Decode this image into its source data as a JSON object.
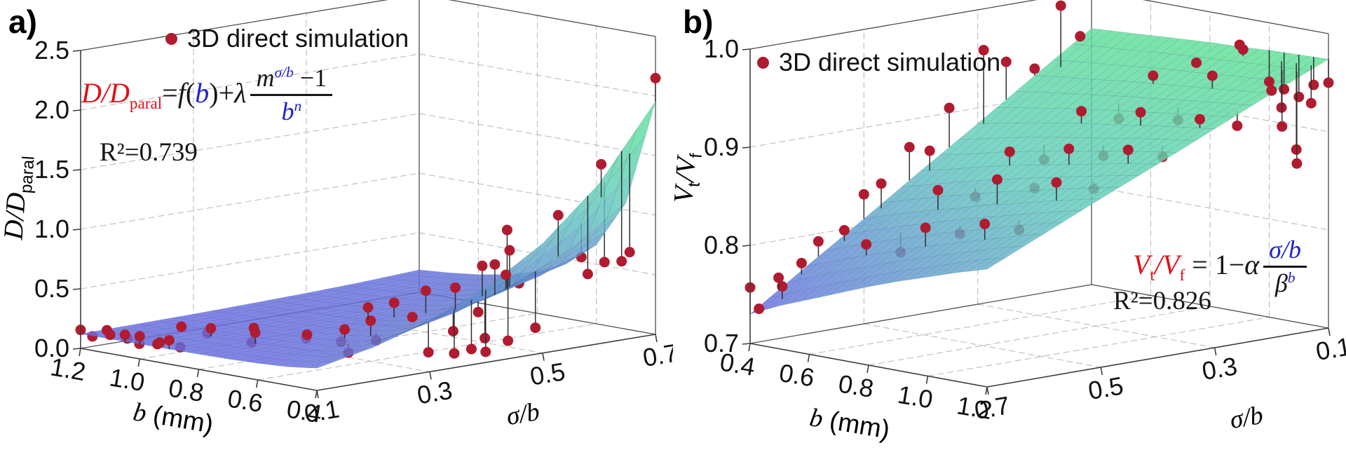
{
  "page": {
    "background": "#ffffff"
  },
  "chart_data": {
    "type": "3d-surface-scatter",
    "panels": [
      {
        "id": "a",
        "letter": "a)",
        "legend": {
          "label": "3D direct simulation",
          "marker_color": "#b01b30"
        },
        "point_color": "#b01b30",
        "colors": {
          "equation_red": "#e01018",
          "equation_blue": "#2222cc",
          "surface_low": "#6a6de4",
          "surface_mid": "#64ccbe",
          "surface_high": "#62e297"
        },
        "equation": {
          "lhs": "D/D",
          "lhs_sub": "paral",
          "eq": "=",
          "f": "f",
          "open": "(",
          "b": "b",
          "close": ")+",
          "lam": "λ",
          "num_m": "m",
          "num_sup": "σ/b",
          "num_tail": " −1",
          "den": "b",
          "den_sup": "n",
          "r2": "R²=0.739"
        },
        "axes": {
          "b": {
            "title_var": "b",
            "title_unit": " (mm)",
            "ticks": [
              1.2,
              1.0,
              0.8,
              0.6,
              0.4
            ],
            "labels": [
              "1.2",
              "1.0",
              "0.8",
              "0.6",
              "0.4"
            ],
            "range": [
              1.2,
              0.4
            ]
          },
          "sigma": {
            "title": "σ/b",
            "ticks": [
              0.1,
              0.3,
              0.5,
              0.7
            ],
            "labels": [
              "0.1",
              "0.3",
              "0.5",
              "0.7"
            ],
            "range": [
              0.1,
              0.7
            ]
          },
          "z": {
            "title_main": "D/D",
            "title_sub": "paral",
            "ticks": [
              0,
              0.5,
              1.0,
              1.5,
              2.0,
              2.5
            ],
            "labels": [
              "0.0",
              "0.5",
              "1.0",
              "1.5",
              "2.0",
              "2.5"
            ],
            "range": [
              0,
              2.5
            ]
          }
        },
        "corner_values": {
          "left": {
            "b": 1.2,
            "s": 0.1
          },
          "front": {
            "b": 0.4,
            "s": 0.1
          },
          "right": {
            "b": 0.4,
            "s": 0.7
          }
        },
        "surface": {
          "b_values": [
            1.2,
            1.1,
            1.0,
            0.9,
            0.8,
            0.7,
            0.6,
            0.5,
            0.4
          ],
          "sigma_values": [
            0.1,
            0.2,
            0.3,
            0.4,
            0.5,
            0.6,
            0.7
          ],
          "z_grid": [
            [
              0.122,
              0.126,
              0.131,
              0.139,
              0.15,
              0.165,
              0.188
            ],
            [
              0.123,
              0.128,
              0.135,
              0.144,
              0.158,
              0.179,
              0.208
            ],
            [
              0.124,
              0.13,
              0.139,
              0.152,
              0.171,
              0.198,
              0.237
            ],
            [
              0.126,
              0.134,
              0.147,
              0.164,
              0.19,
              0.227,
              0.281
            ],
            [
              0.128,
              0.14,
              0.158,
              0.183,
              0.22,
              0.273,
              0.349
            ],
            [
              0.132,
              0.151,
              0.177,
              0.214,
              0.269,
              0.348,
              0.462
            ],
            [
              0.14,
              0.168,
              0.21,
              0.27,
              0.357,
              0.482,
              0.663
            ],
            [
              0.154,
              0.204,
              0.275,
              0.379,
              0.529,
              0.746,
              1.059
            ],
            [
              0.187,
              0.284,
              0.424,
              0.626,
              0.919,
              1.342,
              1.954
            ]
          ]
        },
        "points": [
          [
            1.2,
            0.1,
            0.155,
            0
          ],
          [
            1.16,
            0.1,
            0.118,
            0
          ],
          [
            1.13,
            0.11,
            0.175,
            0
          ],
          [
            1.1,
            0.1,
            0.158,
            0
          ],
          [
            1.08,
            0.12,
            0.12,
            0
          ],
          [
            1.05,
            0.1,
            0.18,
            0
          ],
          [
            1.02,
            0.11,
            0.11,
            0
          ],
          [
            1.0,
            0.1,
            0.19,
            0
          ],
          [
            0.97,
            0.12,
            0.135,
            0
          ],
          [
            0.94,
            0.1,
            0.15,
            0
          ],
          [
            0.92,
            0.13,
            0.11,
            0
          ],
          [
            0.9,
            0.1,
            0.2,
            0
          ],
          [
            1.05,
            0.2,
            0.17,
            0
          ],
          [
            1.0,
            0.22,
            0.12,
            0
          ],
          [
            0.95,
            0.2,
            0.2,
            0
          ],
          [
            0.9,
            0.25,
            0.185,
            0
          ],
          [
            0.85,
            0.22,
            0.11,
            0
          ],
          [
            0.8,
            0.2,
            0.23,
            0
          ],
          [
            0.78,
            0.28,
            0.13,
            0
          ],
          [
            0.72,
            0.25,
            0.21,
            0
          ],
          [
            0.7,
            0.3,
            0.12,
            0
          ],
          [
            0.65,
            0.28,
            0.26,
            0
          ],
          [
            0.62,
            0.32,
            0.15,
            0
          ],
          [
            0.6,
            0.3,
            0.34,
            0
          ],
          [
            0.58,
            0.25,
            0.12,
            0
          ],
          [
            0.5,
            0.35,
            0.08,
            1
          ],
          [
            0.47,
            0.38,
            0.06,
            1
          ],
          [
            0.45,
            0.4,
            0.09,
            1
          ],
          [
            0.44,
            0.42,
            0.055,
            1
          ],
          [
            0.8,
            0.4,
            0.285,
            0
          ],
          [
            0.75,
            0.42,
            0.33,
            0
          ],
          [
            0.7,
            0.45,
            0.43,
            0
          ],
          [
            0.65,
            0.4,
            0.27,
            0
          ],
          [
            0.6,
            0.45,
            0.5,
            0
          ],
          [
            0.58,
            0.48,
            0.28,
            0
          ],
          [
            0.55,
            0.42,
            0.18,
            0
          ],
          [
            0.52,
            0.5,
            0.98,
            0
          ],
          [
            0.55,
            0.52,
            0.78,
            0
          ],
          [
            0.5,
            0.45,
            0.12,
            0
          ],
          [
            0.48,
            0.5,
            0.55,
            0
          ],
          [
            0.6,
            0.52,
            0.64,
            0
          ],
          [
            0.62,
            0.55,
            0.52,
            0
          ],
          [
            0.7,
            0.55,
            0.56,
            0
          ],
          [
            0.5,
            0.58,
            1.05,
            0
          ],
          [
            0.46,
            0.6,
            0.7,
            0
          ],
          [
            0.42,
            0.62,
            0.66,
            0
          ],
          [
            0.4,
            0.7,
            2.15,
            0
          ],
          [
            0.45,
            0.63,
            1.46,
            0
          ],
          [
            0.4,
            0.64,
            0.66,
            1
          ],
          [
            0.43,
            0.67,
            0.7,
            1
          ],
          [
            0.46,
            0.47,
            0.1,
            1
          ],
          [
            0.4,
            0.58,
            0.6,
            1
          ],
          [
            0.52,
            0.55,
            0.12,
            1
          ]
        ]
      },
      {
        "id": "b",
        "letter": "b)",
        "legend": {
          "label": "3D direct simulation",
          "marker_color": "#b01b30"
        },
        "point_color": "#b01b30",
        "colors": {
          "equation_red": "#e01018",
          "equation_blue": "#2222cc",
          "surface_low": "#6a6de4",
          "surface_mid": "#64ccbe",
          "surface_high": "#62e297"
        },
        "equation": {
          "v1": "V",
          "v1_sub": "t",
          "v2": "/V",
          "v2_sub": "f",
          "mid": " = 1−",
          "alpha": "α",
          "num": "σ/b",
          "den": "β",
          "den_sup": "b",
          "r2": "R²=0.826"
        },
        "axes": {
          "b": {
            "title_var": "b",
            "title_unit": " (mm)",
            "ticks": [
              0.4,
              0.6,
              0.8,
              1.0,
              1.2
            ],
            "labels": [
              "0.4",
              "0.6",
              "0.8",
              "1.0",
              "1.2"
            ],
            "range": [
              0.4,
              1.2
            ]
          },
          "sigma": {
            "title": "σ/b",
            "ticks": [
              0.7,
              0.5,
              0.3,
              0.1
            ],
            "labels": [
              "0.7",
              "0.5",
              "0.3",
              "0.1"
            ],
            "range": [
              0.7,
              0.1
            ]
          },
          "z": {
            "title_main": "V",
            "title_sub_t": "t",
            "title_main2": "/V",
            "title_sub_f": "f",
            "ticks": [
              0.7,
              0.8,
              0.9,
              1.0
            ],
            "labels": [
              "0.7",
              "0.8",
              "0.9",
              "1.0"
            ],
            "range": [
              0.7,
              1.0
            ]
          }
        },
        "corner_values": {
          "left": {
            "b": 0.4,
            "s": 0.7
          },
          "front": {
            "b": 1.2,
            "s": 0.7
          },
          "right": {
            "b": 1.2,
            "s": 0.1
          }
        },
        "surface": {
          "b_values": [
            0.4,
            0.5,
            0.6,
            0.7,
            0.8,
            0.9,
            1.0,
            1.1,
            1.2
          ],
          "sigma_values": [
            0.1,
            0.2,
            0.3,
            0.4,
            0.5,
            0.6,
            0.7
          ],
          "z_grid": [
            [
              0.961,
              0.923,
              0.884,
              0.846,
              0.807,
              0.769,
              0.73
            ],
            [
              0.963,
              0.927,
              0.89,
              0.853,
              0.817,
              0.78,
              0.744
            ],
            [
              0.965,
              0.93,
              0.896,
              0.861,
              0.826,
              0.791,
              0.756
            ],
            [
              0.967,
              0.934,
              0.901,
              0.868,
              0.834,
              0.801,
              0.768
            ],
            [
              0.969,
              0.937,
              0.906,
              0.874,
              0.843,
              0.811,
              0.78
            ],
            [
              0.97,
              0.94,
              0.91,
              0.88,
              0.85,
              0.82,
              0.791
            ],
            [
              0.972,
              0.943,
              0.915,
              0.886,
              0.858,
              0.829,
              0.801
            ],
            [
              0.973,
              0.946,
              0.919,
              0.892,
              0.865,
              0.838,
              0.811
            ],
            [
              0.974,
              0.949,
              0.923,
              0.897,
              0.872,
              0.846,
              0.82
            ]
          ]
        },
        "points": [
          [
            0.4,
            0.7,
            0.757,
            0
          ],
          [
            0.43,
            0.7,
            0.737,
            0
          ],
          [
            0.47,
            0.68,
            0.76,
            0
          ],
          [
            0.4,
            0.65,
            0.762,
            0
          ],
          [
            0.42,
            0.62,
            0.775,
            0
          ],
          [
            0.4,
            0.58,
            0.792,
            0
          ],
          [
            0.43,
            0.55,
            0.802,
            0
          ],
          [
            0.4,
            0.5,
            0.832,
            0
          ],
          [
            0.42,
            0.48,
            0.842,
            0
          ],
          [
            0.4,
            0.42,
            0.872,
            0
          ],
          [
            0.43,
            0.4,
            0.868,
            0
          ],
          [
            0.4,
            0.35,
            0.905,
            0
          ],
          [
            0.42,
            0.3,
            0.96,
            0
          ],
          [
            0.4,
            0.25,
            0.942,
            0
          ],
          [
            0.4,
            0.2,
            0.93,
            0
          ],
          [
            0.45,
            0.18,
            0.995,
            0
          ],
          [
            0.4,
            0.12,
            0.955,
            0
          ],
          [
            0.6,
            0.6,
            0.802,
            0
          ],
          [
            0.62,
            0.55,
            0.79,
            0
          ],
          [
            0.65,
            0.5,
            0.85,
            0
          ],
          [
            0.68,
            0.45,
            0.84,
            0
          ],
          [
            0.7,
            0.4,
            0.882,
            0
          ],
          [
            0.72,
            0.35,
            0.87,
            0
          ],
          [
            0.75,
            0.3,
            0.916,
            0
          ],
          [
            0.78,
            0.25,
            0.905,
            0
          ],
          [
            0.8,
            0.2,
            0.945,
            0
          ],
          [
            0.8,
            0.6,
            0.83,
            0
          ],
          [
            0.82,
            0.55,
            0.82,
            0
          ],
          [
            0.85,
            0.5,
            0.872,
            0
          ],
          [
            0.88,
            0.45,
            0.86,
            0
          ],
          [
            0.9,
            0.4,
            0.896,
            0
          ],
          [
            0.92,
            0.35,
            0.885,
            0
          ],
          [
            0.95,
            0.3,
            0.926,
            0
          ],
          [
            0.98,
            0.25,
            0.915,
            0
          ],
          [
            1.0,
            0.2,
            0.956,
            0
          ],
          [
            1.0,
            0.6,
            0.845,
            0
          ],
          [
            1.02,
            0.55,
            0.835,
            0
          ],
          [
            1.05,
            0.5,
            0.88,
            0
          ],
          [
            1.08,
            0.45,
            0.87,
            0
          ],
          [
            1.1,
            0.4,
            0.906,
            0
          ],
          [
            1.12,
            0.35,
            0.895,
            0
          ],
          [
            1.15,
            0.3,
            0.93,
            0
          ],
          [
            1.18,
            0.25,
            0.92,
            0
          ],
          [
            1.2,
            0.2,
            0.952,
            0
          ],
          [
            1.0,
            0.1,
            0.94,
            1
          ],
          [
            1.05,
            0.1,
            0.935,
            1
          ],
          [
            1.08,
            0.12,
            0.92,
            1
          ],
          [
            1.1,
            0.1,
            0.93,
            1
          ],
          [
            1.12,
            0.14,
            0.905,
            1
          ],
          [
            1.15,
            0.1,
            0.945,
            1
          ],
          [
            1.18,
            0.12,
            0.93,
            1
          ],
          [
            1.2,
            0.1,
            0.95,
            1
          ],
          [
            1.13,
            0.12,
            0.88,
            1
          ],
          [
            1.17,
            0.14,
            0.87,
            1
          ],
          [
            0.95,
            0.12,
            0.972,
            0
          ],
          [
            0.9,
            0.1,
            0.972,
            0
          ],
          [
            0.85,
            0.15,
            0.956,
            0
          ]
        ]
      }
    ]
  }
}
